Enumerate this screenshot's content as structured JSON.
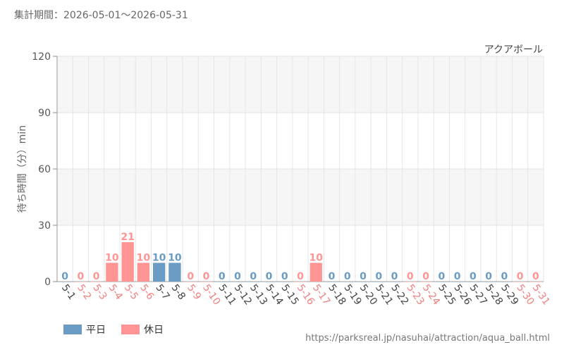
{
  "header": {
    "period": "集計期間：2026-05-01～2026-05-31"
  },
  "chart_data": {
    "type": "bar",
    "title": "アクアボール",
    "ylabel": "待ち時間（分）min",
    "ylim": [
      0,
      120
    ],
    "yticks": [
      0,
      30,
      60,
      90,
      120
    ],
    "grid": true,
    "categories": [
      "5-1",
      "5-2",
      "5-3",
      "5-4",
      "5-5",
      "5-6",
      "5-7",
      "5-8",
      "5-9",
      "5-10",
      "5-11",
      "5-12",
      "5-13",
      "5-14",
      "5-15",
      "5-16",
      "5-17",
      "5-18",
      "5-19",
      "5-20",
      "5-21",
      "5-22",
      "5-23",
      "5-24",
      "5-25",
      "5-26",
      "5-27",
      "5-28",
      "5-29",
      "5-30",
      "5-31"
    ],
    "values": [
      0,
      0,
      0,
      10,
      21,
      10,
      10,
      10,
      0,
      0,
      0,
      0,
      0,
      0,
      0,
      0,
      10,
      0,
      0,
      0,
      0,
      0,
      0,
      0,
      0,
      0,
      0,
      0,
      0,
      0,
      0
    ],
    "day_type": [
      "weekday",
      "holiday",
      "holiday",
      "holiday",
      "holiday",
      "holiday",
      "weekday",
      "weekday",
      "holiday",
      "holiday",
      "weekday",
      "weekday",
      "weekday",
      "weekday",
      "weekday",
      "holiday",
      "holiday",
      "weekday",
      "weekday",
      "weekday",
      "weekday",
      "weekday",
      "holiday",
      "holiday",
      "weekday",
      "weekday",
      "weekday",
      "weekday",
      "weekday",
      "holiday",
      "holiday"
    ]
  },
  "legend": {
    "location": "bottom-left",
    "weekday_label": "平日",
    "holiday_label": "休日"
  },
  "colors": {
    "weekday": "#6a9bc3",
    "holiday": "#ff9494",
    "weekday_text": "#444444",
    "holiday_text": "#f08080"
  },
  "source": "https://parksreal.jp/nasuhai/attraction/aqua_ball.html"
}
